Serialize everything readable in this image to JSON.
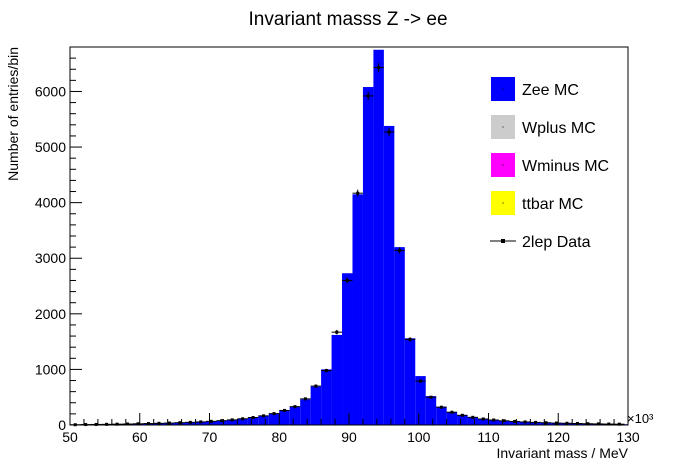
{
  "chart_data": {
    "type": "bar",
    "title": "Invariant masss Z -> ee",
    "xlabel": "Invariant mass / MeV",
    "ylabel": "Number of entries/bin",
    "x_multiplier": "×10³",
    "xlim": [
      50,
      130
    ],
    "ylim": [
      0,
      6800
    ],
    "x_ticks": [
      50,
      60,
      70,
      80,
      90,
      100,
      110,
      120,
      130
    ],
    "y_ticks": [
      0,
      1000,
      2000,
      3000,
      4000,
      5000,
      6000
    ],
    "bin_width": 1.5,
    "bin_edges_start": 50,
    "series": [
      {
        "name": "Zee MC",
        "color": "#0000ff",
        "style": "filled-histogram",
        "values": [
          5,
          8,
          10,
          12,
          15,
          18,
          22,
          26,
          30,
          35,
          42,
          48,
          56,
          66,
          78,
          92,
          112,
          135,
          165,
          205,
          260,
          330,
          460,
          690,
          1000,
          1620,
          2730,
          4150,
          6080,
          6750,
          5380,
          3200,
          1560,
          880,
          520,
          330,
          235,
          180,
          140,
          110,
          92,
          78,
          66,
          56,
          48,
          42,
          36,
          32,
          28,
          24,
          21,
          18,
          16,
          14
        ]
      },
      {
        "name": "Wplus MC",
        "color": "#cccccc",
        "style": "filled-histogram"
      },
      {
        "name": "Wminus MC",
        "color": "#ff00ff",
        "style": "filled-histogram"
      },
      {
        "name": "ttbar MC",
        "color": "#ffff00",
        "style": "filled-histogram"
      },
      {
        "name": "2lep Data",
        "color": "#000000",
        "style": "points-with-errors",
        "values": [
          5,
          8,
          10,
          12,
          15,
          18,
          22,
          26,
          30,
          35,
          42,
          48,
          56,
          66,
          78,
          92,
          112,
          135,
          165,
          205,
          262,
          330,
          470,
          700,
          980,
          1670,
          2600,
          4170,
          5920,
          6430,
          5270,
          3140,
          1540,
          790,
          500,
          320,
          230,
          175,
          138,
          108,
          90,
          76,
          64,
          55,
          47,
          41,
          35,
          31,
          27,
          23,
          20,
          17,
          15,
          13
        ]
      }
    ],
    "legend_position": "top-right"
  }
}
